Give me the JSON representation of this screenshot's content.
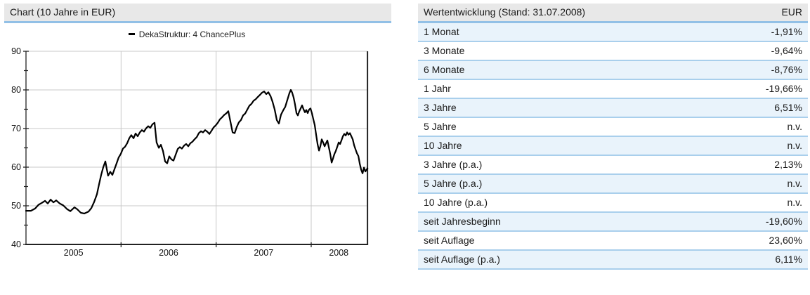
{
  "colors": {
    "header_bg": "#e8e8e8",
    "header_underline": "#92c0e6",
    "row_separator": "#a9cfec",
    "row_alt_bg": "#e9f3fb",
    "grid": "#c8c8c8",
    "axis": "#222222",
    "series_line": "#000000"
  },
  "chart_header": {
    "title": "Chart (10 Jahre in EUR)"
  },
  "table": {
    "title": "Wertentwicklung (Stand: 31.07.2008)",
    "currency_header": "EUR",
    "rows": [
      {
        "label": "1 Monat",
        "value": "-1,91%"
      },
      {
        "label": "3 Monate",
        "value": "-9,64%"
      },
      {
        "label": "6 Monate",
        "value": "-8,76%"
      },
      {
        "label": "1 Jahr",
        "value": "-19,66%"
      },
      {
        "label": "3 Jahre",
        "value": "6,51%"
      },
      {
        "label": "5 Jahre",
        "value": "n.v."
      },
      {
        "label": "10 Jahre",
        "value": "n.v."
      },
      {
        "label": "3 Jahre (p.a.)",
        "value": "2,13%"
      },
      {
        "label": "5 Jahre (p.a.)",
        "value": "n.v."
      },
      {
        "label": "10 Jahre (p.a.)",
        "value": "n.v."
      },
      {
        "label": "seit Jahresbeginn",
        "value": "-19,60%"
      },
      {
        "label": "seit Auflage",
        "value": "23,60%"
      },
      {
        "label": "seit Auflage (p.a.)",
        "value": "6,11%"
      }
    ]
  },
  "chart_data": {
    "type": "line",
    "title": "Chart (10 Jahre in EUR)",
    "xlabel": "",
    "ylabel": "",
    "grid": true,
    "legend_position": "top-center",
    "y_axis": {
      "range": [
        40,
        90
      ],
      "major_ticks": [
        40,
        50,
        60,
        70,
        80,
        90
      ],
      "minor_ticks": [
        45,
        55,
        65,
        75,
        85
      ]
    },
    "x_axis": {
      "range": [
        2005.0,
        2008.592
      ],
      "gridlines": [
        2006,
        2007,
        2008
      ],
      "labels": [
        {
          "text": "2005",
          "at": 2005.5
        },
        {
          "text": "2006",
          "at": 2006.5
        },
        {
          "text": "2007",
          "at": 2007.5
        },
        {
          "text": "2008",
          "at": 2008.29
        }
      ]
    },
    "series": [
      {
        "name": "DekaStruktur: 4 ChancePlus",
        "color": "#000000",
        "points": [
          [
            2005.0,
            48.7
          ],
          [
            2005.052,
            48.7
          ],
          [
            2005.096,
            49.3
          ],
          [
            2005.133,
            50.3
          ],
          [
            2005.17,
            50.8
          ],
          [
            2005.2,
            51.3
          ],
          [
            2005.229,
            50.6
          ],
          [
            2005.259,
            51.6
          ],
          [
            2005.288,
            50.9
          ],
          [
            2005.318,
            51.4
          ],
          [
            2005.355,
            50.6
          ],
          [
            2005.392,
            50.1
          ],
          [
            2005.429,
            49.2
          ],
          [
            2005.466,
            48.6
          ],
          [
            2005.51,
            49.6
          ],
          [
            2005.539,
            49.1
          ],
          [
            2005.576,
            48.2
          ],
          [
            2005.613,
            48.0
          ],
          [
            2005.658,
            48.5
          ],
          [
            2005.687,
            49.4
          ],
          [
            2005.717,
            51.0
          ],
          [
            2005.746,
            53.0
          ],
          [
            2005.768,
            55.5
          ],
          [
            2005.791,
            58.0
          ],
          [
            2005.813,
            60.0
          ],
          [
            2005.835,
            61.5
          ],
          [
            2005.85,
            59.5
          ],
          [
            2005.864,
            57.8
          ],
          [
            2005.887,
            58.8
          ],
          [
            2005.909,
            58.0
          ],
          [
            2005.931,
            59.5
          ],
          [
            2005.953,
            61.0
          ],
          [
            2005.975,
            62.5
          ],
          [
            2005.998,
            63.5
          ],
          [
            2006.02,
            64.8
          ],
          [
            2006.042,
            65.3
          ],
          [
            2006.064,
            66.2
          ],
          [
            2006.086,
            67.5
          ],
          [
            2006.108,
            68.3
          ],
          [
            2006.131,
            67.5
          ],
          [
            2006.153,
            68.7
          ],
          [
            2006.175,
            68.0
          ],
          [
            2006.197,
            69.0
          ],
          [
            2006.219,
            69.6
          ],
          [
            2006.241,
            69.2
          ],
          [
            2006.264,
            70.1
          ],
          [
            2006.286,
            70.6
          ],
          [
            2006.308,
            70.2
          ],
          [
            2006.33,
            71.1
          ],
          [
            2006.352,
            71.5
          ],
          [
            2006.374,
            66.4
          ],
          [
            2006.397,
            65.0
          ],
          [
            2006.419,
            65.8
          ],
          [
            2006.441,
            64.2
          ],
          [
            2006.463,
            61.5
          ],
          [
            2006.485,
            61.0
          ],
          [
            2006.507,
            62.8
          ],
          [
            2006.53,
            62.0
          ],
          [
            2006.552,
            61.7
          ],
          [
            2006.574,
            63.2
          ],
          [
            2006.596,
            64.7
          ],
          [
            2006.618,
            65.2
          ],
          [
            2006.64,
            64.8
          ],
          [
            2006.663,
            65.6
          ],
          [
            2006.685,
            66.0
          ],
          [
            2006.707,
            65.4
          ],
          [
            2006.729,
            66.2
          ],
          [
            2006.751,
            66.6
          ],
          [
            2006.773,
            67.2
          ],
          [
            2006.796,
            67.8
          ],
          [
            2006.818,
            68.8
          ],
          [
            2006.84,
            69.3
          ],
          [
            2006.862,
            69.0
          ],
          [
            2006.884,
            69.6
          ],
          [
            2006.906,
            69.2
          ],
          [
            2006.929,
            68.6
          ],
          [
            2006.951,
            69.4
          ],
          [
            2006.973,
            70.3
          ],
          [
            2006.995,
            70.8
          ],
          [
            2007.017,
            71.5
          ],
          [
            2007.04,
            72.4
          ],
          [
            2007.062,
            72.9
          ],
          [
            2007.084,
            73.5
          ],
          [
            2007.106,
            73.9
          ],
          [
            2007.128,
            74.5
          ],
          [
            2007.15,
            71.8
          ],
          [
            2007.173,
            69.0
          ],
          [
            2007.195,
            68.8
          ],
          [
            2007.217,
            70.4
          ],
          [
            2007.239,
            71.6
          ],
          [
            2007.261,
            72.2
          ],
          [
            2007.283,
            73.4
          ],
          [
            2007.306,
            73.9
          ],
          [
            2007.328,
            74.9
          ],
          [
            2007.35,
            75.9
          ],
          [
            2007.372,
            76.4
          ],
          [
            2007.394,
            77.2
          ],
          [
            2007.416,
            77.6
          ],
          [
            2007.439,
            78.2
          ],
          [
            2007.461,
            78.7
          ],
          [
            2007.483,
            79.3
          ],
          [
            2007.505,
            79.6
          ],
          [
            2007.527,
            78.9
          ],
          [
            2007.549,
            79.4
          ],
          [
            2007.572,
            78.4
          ],
          [
            2007.594,
            76.9
          ],
          [
            2007.616,
            74.9
          ],
          [
            2007.638,
            72.2
          ],
          [
            2007.66,
            71.3
          ],
          [
            2007.682,
            73.6
          ],
          [
            2007.705,
            74.7
          ],
          [
            2007.727,
            75.6
          ],
          [
            2007.749,
            77.4
          ],
          [
            2007.771,
            79.2
          ],
          [
            2007.786,
            80.0
          ],
          [
            2007.8,
            79.3
          ],
          [
            2007.815,
            78.0
          ],
          [
            2007.83,
            76.2
          ],
          [
            2007.845,
            74.0
          ],
          [
            2007.86,
            73.4
          ],
          [
            2007.874,
            74.4
          ],
          [
            2007.889,
            75.2
          ],
          [
            2007.904,
            76.0
          ],
          [
            2007.919,
            75.0
          ],
          [
            2007.934,
            74.2
          ],
          [
            2007.948,
            74.8
          ],
          [
            2007.963,
            74.0
          ],
          [
            2007.978,
            74.9
          ],
          [
            2007.993,
            75.2
          ],
          [
            2008.008,
            73.9
          ],
          [
            2008.022,
            72.4
          ],
          [
            2008.037,
            70.9
          ],
          [
            2008.052,
            68.4
          ],
          [
            2008.067,
            65.9
          ],
          [
            2008.082,
            64.3
          ],
          [
            2008.096,
            65.4
          ],
          [
            2008.111,
            67.2
          ],
          [
            2008.126,
            66.4
          ],
          [
            2008.141,
            65.4
          ],
          [
            2008.156,
            66.2
          ],
          [
            2008.17,
            66.9
          ],
          [
            2008.185,
            65.2
          ],
          [
            2008.2,
            63.4
          ],
          [
            2008.215,
            61.2
          ],
          [
            2008.23,
            62.3
          ],
          [
            2008.244,
            63.4
          ],
          [
            2008.259,
            64.2
          ],
          [
            2008.274,
            65.3
          ],
          [
            2008.289,
            66.4
          ],
          [
            2008.304,
            66.0
          ],
          [
            2008.318,
            66.9
          ],
          [
            2008.333,
            68.0
          ],
          [
            2008.348,
            68.6
          ],
          [
            2008.363,
            68.2
          ],
          [
            2008.378,
            69.0
          ],
          [
            2008.392,
            68.4
          ],
          [
            2008.407,
            68.8
          ],
          [
            2008.422,
            68.0
          ],
          [
            2008.437,
            67.2
          ],
          [
            2008.452,
            65.6
          ],
          [
            2008.466,
            64.6
          ],
          [
            2008.481,
            63.6
          ],
          [
            2008.496,
            62.9
          ],
          [
            2008.511,
            60.9
          ],
          [
            2008.525,
            59.4
          ],
          [
            2008.54,
            58.4
          ],
          [
            2008.555,
            59.9
          ],
          [
            2008.57,
            58.9
          ],
          [
            2008.592,
            59.7
          ]
        ]
      }
    ]
  }
}
